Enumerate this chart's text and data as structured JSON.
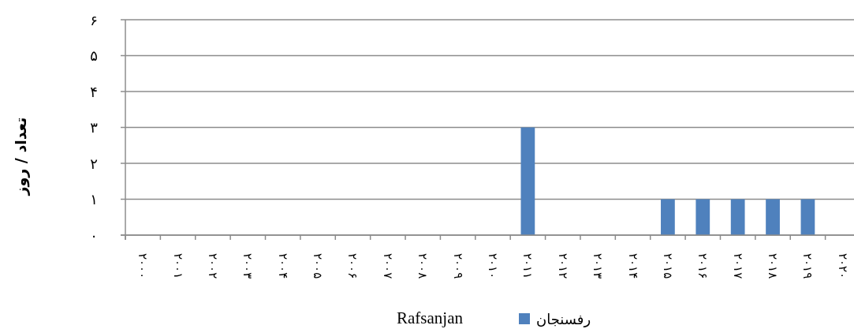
{
  "chart_data": {
    "type": "bar",
    "ylabel": "تعداد / روز",
    "xlabel": "Rafsanjan",
    "categories": [
      "۲۰۰۰",
      "۲۰۰۱",
      "۲۰۰۲",
      "۲۰۰۳",
      "۲۰۰۴",
      "۲۰۰۵",
      "۲۰۰۶",
      "۲۰۰۷",
      "۲۰۰۸",
      "۲۰۰۹",
      "۲۰۱۰",
      "۲۰۱۱",
      "۲۰۱۲",
      "۲۰۱۳",
      "۲۰۱۴",
      "۲۰۱۵",
      "۲۰۱۶",
      "۲۰۱۷",
      "۲۰۱۸",
      "۲۰۱۹",
      "۲۰۲۰"
    ],
    "series": [
      {
        "name": "رفسنجان",
        "color": "#4f81bd",
        "values": [
          0,
          0,
          0,
          0,
          0,
          0,
          0,
          0,
          0,
          0,
          0,
          3,
          0,
          0,
          0,
          1,
          1,
          1,
          1,
          1,
          0
        ]
      }
    ],
    "ylim": [
      0,
      6
    ],
    "yticks": [
      {
        "value": 0,
        "label": "۰"
      },
      {
        "value": 1,
        "label": "۱"
      },
      {
        "value": 2,
        "label": "۲"
      },
      {
        "value": 3,
        "label": "۳"
      },
      {
        "value": 4,
        "label": "۴"
      },
      {
        "value": 5,
        "label": "۵"
      },
      {
        "value": 6,
        "label": "۶"
      }
    ],
    "grid": "y",
    "legend": "bottom"
  }
}
